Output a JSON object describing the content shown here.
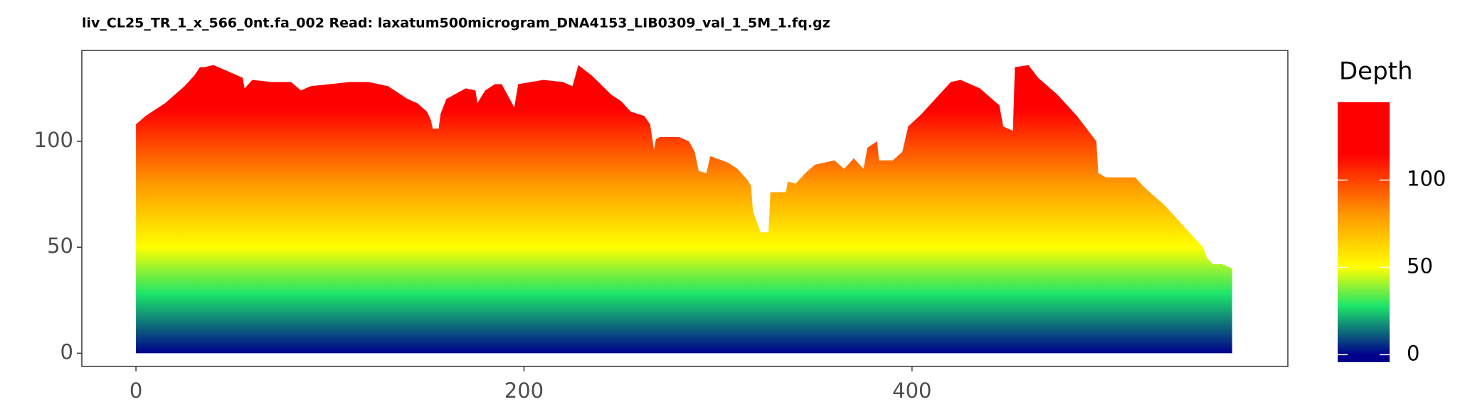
{
  "chart_data": {
    "type": "area",
    "title": "liv_CL25_TR_1_x_566_0nt.fa_002   Read: laxatum500microgram_DNA4153_LIB0309_val_1_5M_1.fq.gz",
    "x": [
      0,
      5,
      10,
      15,
      20,
      25,
      30,
      33,
      35,
      40,
      45,
      50,
      55,
      56,
      60,
      70,
      80,
      85,
      90,
      100,
      110,
      120,
      130,
      140,
      145,
      150,
      152,
      153,
      156,
      157,
      160,
      170,
      175,
      176,
      180,
      185,
      190,
      188.5,
      195,
      197,
      210,
      220,
      225,
      228,
      235,
      245,
      250,
      255,
      262,
      265,
      267,
      268,
      270,
      280,
      285,
      288,
      290,
      294,
      296,
      305,
      310,
      315,
      317,
      318,
      322,
      326,
      327,
      335,
      336,
      340,
      345,
      350,
      360,
      365,
      370,
      375,
      377,
      382,
      383,
      390,
      395,
      398,
      405,
      410,
      420,
      425,
      435,
      445,
      447,
      452,
      453,
      460,
      465,
      475,
      485,
      490,
      495,
      496,
      500,
      515,
      520,
      525,
      530,
      535,
      540,
      545,
      550,
      552,
      555,
      560,
      565
    ],
    "values": [
      108,
      112,
      115,
      118,
      122,
      126,
      131,
      135,
      135,
      136,
      134,
      132,
      130,
      125,
      129,
      128,
      128,
      124,
      126,
      127,
      128,
      128,
      126,
      120,
      118,
      114,
      110,
      106,
      106,
      113,
      120,
      125,
      124,
      118,
      124,
      127,
      127,
      127,
      116,
      127,
      129,
      128,
      126,
      136,
      131,
      122,
      119,
      114,
      112,
      108,
      96,
      101,
      102,
      102,
      100,
      95,
      86,
      85,
      93,
      90,
      87,
      82,
      79,
      67,
      57,
      57,
      76,
      76,
      81,
      80,
      85,
      89,
      91,
      87,
      92,
      87,
      97,
      100,
      91,
      91,
      95,
      107,
      113,
      118,
      128,
      129,
      125,
      117,
      107,
      105,
      135,
      136,
      130,
      122,
      112,
      106,
      100,
      85,
      83,
      83,
      78,
      74,
      70,
      65,
      60,
      55,
      50,
      45,
      42,
      42,
      40
    ],
    "xlim": [
      -27.9,
      593.7
    ],
    "ylim": [
      -6.25,
      142.9
    ],
    "xticks": [
      0,
      200,
      400
    ],
    "yticks": [
      0,
      50,
      100
    ],
    "legend": {
      "title": "Depth",
      "lim": [
        -4.3,
        144.6
      ],
      "ticks": [
        0,
        50,
        100
      ]
    },
    "color_stops": [
      {
        "value": 0,
        "color": "#00008b"
      },
      {
        "value": 28,
        "color": "#1de56a"
      },
      {
        "value": 50,
        "color": "#ffff00"
      },
      {
        "value": 80,
        "color": "#ff9900"
      },
      {
        "value": 115,
        "color": "#ff0000"
      }
    ]
  }
}
